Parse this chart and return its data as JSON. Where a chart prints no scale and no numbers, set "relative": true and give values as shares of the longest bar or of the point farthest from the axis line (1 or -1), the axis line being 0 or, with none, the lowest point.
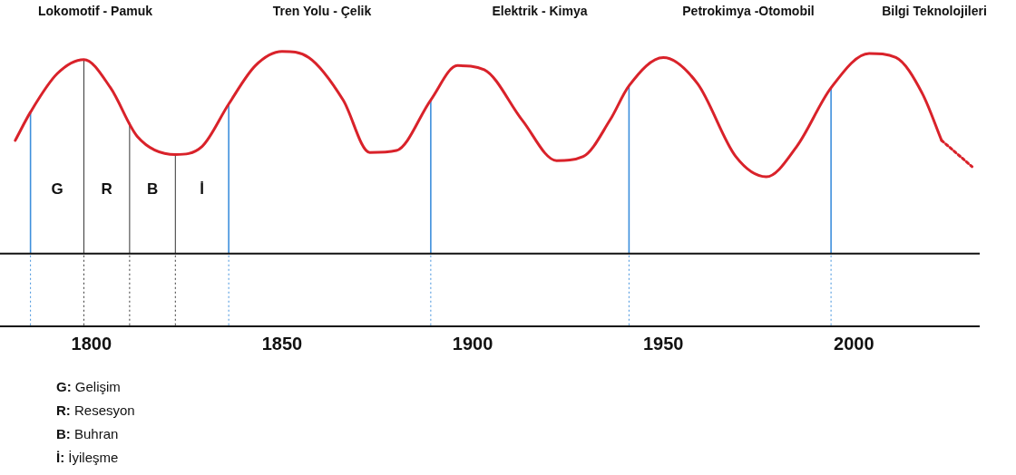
{
  "chart_data": {
    "type": "line",
    "relative": true,
    "x": [
      1780,
      1784,
      1791,
      1798,
      1805,
      1812,
      1822,
      1829,
      1836,
      1843,
      1850,
      1857,
      1866,
      1873,
      1880,
      1889,
      1896,
      1903,
      1913,
      1922,
      1929,
      1936,
      1941,
      1950,
      1959,
      1969,
      1977,
      1985,
      1994,
      2004,
      2011,
      2018,
      2023
    ],
    "series": [
      {
        "color": "#d9222a",
        "values": [
          0.56,
          0.7,
          0.89,
          0.96,
          0.82,
          0.58,
          0.49,
          0.53,
          0.74,
          0.93,
          1.0,
          0.97,
          0.76,
          0.5,
          0.51,
          0.76,
          0.93,
          0.91,
          0.66,
          0.46,
          0.48,
          0.66,
          0.83,
          0.97,
          0.84,
          0.48,
          0.38,
          0.53,
          0.82,
          0.99,
          0.97,
          0.79,
          0.56
        ]
      },
      {
        "color": "#d9222a",
        "line_style": "dotted",
        "x": [
          2023,
          2031
        ],
        "values": [
          0.56,
          0.43
        ]
      }
    ],
    "xlim": [
      1776,
      2033
    ],
    "xticks": [
      1800,
      1850,
      1900,
      1950,
      2000
    ],
    "grid": false,
    "legend": false,
    "marker": "none",
    "ref_lines": [
      {
        "axis": "x",
        "value": 1784,
        "color": "#3d8fdc"
      },
      {
        "axis": "x",
        "value": 1798,
        "color": "#333333"
      },
      {
        "axis": "x",
        "value": 1810,
        "color": "#333333"
      },
      {
        "axis": "x",
        "value": 1822,
        "color": "#333333"
      },
      {
        "axis": "x",
        "value": 1836,
        "color": "#3d8fdc"
      },
      {
        "axis": "x",
        "value": 1889,
        "color": "#3d8fdc"
      },
      {
        "axis": "x",
        "value": 1941,
        "color": "#3d8fdc"
      },
      {
        "axis": "x",
        "value": 1994,
        "color": "#3d8fdc"
      }
    ],
    "annotations": [
      "Lokomotif - Pamuk",
      "Tren Yolu - Çelik",
      "Elektrik - Kimya",
      "Petrokimya -Otomobil",
      "Bilgi Teknolojileri",
      "G",
      "R",
      "B",
      "İ",
      "G: Gelişim",
      "R: Resesyon",
      "B: Buhran",
      "İ:  İyileşme"
    ]
  }
}
